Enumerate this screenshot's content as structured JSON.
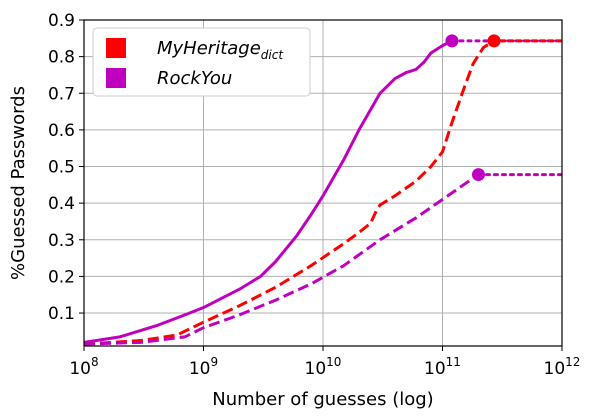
{
  "chart_data": {
    "type": "line",
    "xlabel": "Number of guesses (log)",
    "ylabel": "%Guessed Passwords",
    "xscale": "log",
    "xlim": [
      100000000,
      1000000000000
    ],
    "ylim": [
      0.01,
      0.9
    ],
    "grid": true,
    "legend_position": "top-left",
    "x_ticks": [
      {
        "value": 100000000,
        "base": "10",
        "exp": "8"
      },
      {
        "value": 1000000000,
        "base": "10",
        "exp": "9"
      },
      {
        "value": 10000000000,
        "base": "10",
        "exp": "10"
      },
      {
        "value": 100000000000,
        "base": "10",
        "exp": "11"
      },
      {
        "value": 1000000000000,
        "base": "10",
        "exp": "12"
      }
    ],
    "y_ticks": [
      "0.1",
      "0.2",
      "0.3",
      "0.4",
      "0.5",
      "0.6",
      "0.7",
      "0.8",
      "0.9"
    ],
    "legend": [
      {
        "label": "MyHeritage",
        "subscript": "dict",
        "color": "#ff0000"
      },
      {
        "label": "RockYou",
        "subscript": "",
        "color": "#bf00bf"
      }
    ],
    "series": [
      {
        "name": "RockYou",
        "color": "#bf00bf",
        "style": "solid",
        "points": [
          [
            100000000,
            0.02
          ],
          [
            200000000,
            0.035
          ],
          [
            400000000,
            0.065
          ],
          [
            700000000,
            0.095
          ],
          [
            1000000000,
            0.115
          ],
          [
            2000000000,
            0.165
          ],
          [
            3000000000,
            0.2
          ],
          [
            4000000000,
            0.24
          ],
          [
            6000000000,
            0.31
          ],
          [
            8000000000,
            0.37
          ],
          [
            10000000000,
            0.42
          ],
          [
            15000000000,
            0.52
          ],
          [
            20000000000,
            0.6
          ],
          [
            30000000000,
            0.7
          ],
          [
            40000000000,
            0.74
          ],
          [
            50000000000,
            0.757
          ],
          [
            60000000000,
            0.765
          ],
          [
            70000000000,
            0.785
          ],
          [
            80000000000,
            0.81
          ],
          [
            100000000000,
            0.83
          ],
          [
            120000000000,
            0.843
          ]
        ],
        "endpoint": [
          120000000000,
          0.843
        ]
      },
      {
        "name": "",
        "color": "#bf00bf",
        "style": "dotted",
        "points": [
          [
            120000000000,
            0.843
          ],
          [
            1000000000000,
            0.843
          ]
        ]
      },
      {
        "name": "MyHeritage",
        "color": "#ff0000",
        "style": "dashed",
        "points": [
          [
            100000000,
            0.015
          ],
          [
            300000000,
            0.025
          ],
          [
            600000000,
            0.04
          ],
          [
            1000000000,
            0.075
          ],
          [
            2000000000,
            0.12
          ],
          [
            4000000000,
            0.17
          ],
          [
            8000000000,
            0.23
          ],
          [
            15000000000,
            0.29
          ],
          [
            20000000000,
            0.32
          ],
          [
            25000000000,
            0.345
          ],
          [
            28000000000,
            0.38
          ],
          [
            30000000000,
            0.395
          ],
          [
            40000000000,
            0.42
          ],
          [
            60000000000,
            0.46
          ],
          [
            80000000000,
            0.5
          ],
          [
            100000000000,
            0.54
          ],
          [
            120000000000,
            0.62
          ],
          [
            150000000000,
            0.71
          ],
          [
            180000000000,
            0.78
          ],
          [
            220000000000,
            0.825
          ],
          [
            270000000000,
            0.843
          ]
        ],
        "endpoint": [
          270000000000,
          0.843
        ]
      },
      {
        "name": "",
        "color": "#ff0000",
        "style": "dotted",
        "points": [
          [
            270000000000,
            0.843
          ],
          [
            1000000000000,
            0.843
          ]
        ]
      },
      {
        "name": "",
        "color": "#bf00bf",
        "style": "dashed",
        "points": [
          [
            100000000,
            0.015
          ],
          [
            300000000,
            0.02
          ],
          [
            700000000,
            0.035
          ],
          [
            1000000000,
            0.06
          ],
          [
            2000000000,
            0.095
          ],
          [
            4000000000,
            0.135
          ],
          [
            8000000000,
            0.18
          ],
          [
            15000000000,
            0.23
          ],
          [
            30000000000,
            0.3
          ],
          [
            60000000000,
            0.36
          ],
          [
            100000000000,
            0.41
          ],
          [
            150000000000,
            0.45
          ],
          [
            200000000000,
            0.478
          ]
        ],
        "endpoint": [
          200000000000,
          0.478
        ]
      },
      {
        "name": "",
        "color": "#bf00bf",
        "style": "dotted",
        "points": [
          [
            200000000000,
            0.478
          ],
          [
            1000000000000,
            0.478
          ]
        ]
      }
    ]
  }
}
